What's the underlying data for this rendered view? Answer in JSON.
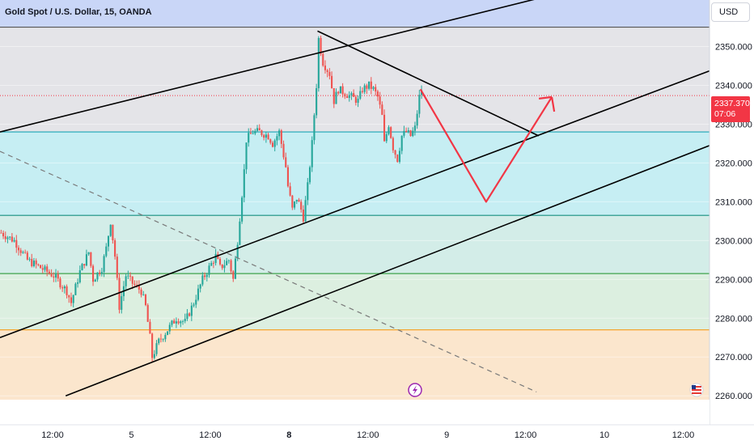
{
  "title": "Gold Spot / U.S. Dollar, 15, OANDA",
  "currency": "USD",
  "last_price": {
    "value": "2337.370",
    "countdown": "07:06"
  },
  "colors": {
    "up": "#26a69a",
    "down": "#ef5350",
    "zone_top": "#c9d6f7",
    "zone_gray": "#e4e4e8",
    "zone_cyan": "#c6eef3",
    "zone_teal": "#d3ede8",
    "zone_green": "#dcefe0",
    "zone_orange": "#fbe6cd",
    "projection": "#f23645"
  },
  "chart_data": {
    "type": "candlestick",
    "ylim": [
      2259,
      2362
    ],
    "y_ticks": [
      2260,
      2270,
      2280,
      2290,
      2300,
      2310,
      2320,
      2330,
      2340,
      2350
    ],
    "y_tick_labels": [
      "2260.000",
      "2270.000",
      "2280.000",
      "2290.000",
      "2300.000",
      "2310.000",
      "2320.000",
      "2330.000",
      "2340.000",
      "2350.000"
    ],
    "x_ticks": [
      {
        "label": "12:00",
        "bar": 24,
        "bold": false
      },
      {
        "label": "5",
        "bar": 60,
        "bold": false
      },
      {
        "label": "12:00",
        "bar": 96,
        "bold": false
      },
      {
        "label": "8",
        "bar": 132,
        "bold": true
      },
      {
        "label": "12:00",
        "bar": 168,
        "bold": false
      },
      {
        "label": "9",
        "bar": 204,
        "bold": false
      },
      {
        "label": "12:00",
        "bar": 240,
        "bold": false
      },
      {
        "label": "10",
        "bar": 276,
        "bold": false
      },
      {
        "label": "12:00",
        "bar": 312,
        "bold": false
      }
    ],
    "bars_total": 324,
    "close_path": [
      [
        0,
        2302
      ],
      [
        6,
        2300
      ],
      [
        12,
        2295
      ],
      [
        18,
        2293
      ],
      [
        24,
        2291
      ],
      [
        30,
        2287
      ],
      [
        32,
        2284
      ],
      [
        36,
        2292
      ],
      [
        40,
        2297
      ],
      [
        42,
        2290
      ],
      [
        46,
        2293
      ],
      [
        48,
        2298
      ],
      [
        50,
        2305
      ],
      [
        52,
        2296
      ],
      [
        54,
        2283
      ],
      [
        57,
        2291
      ],
      [
        60,
        2289
      ],
      [
        64,
        2287
      ],
      [
        66,
        2283
      ],
      [
        68,
        2275
      ],
      [
        69,
        2270
      ],
      [
        72,
        2274
      ],
      [
        76,
        2277
      ],
      [
        80,
        2280
      ],
      [
        84,
        2279
      ],
      [
        88,
        2284
      ],
      [
        92,
        2290
      ],
      [
        96,
        2294
      ],
      [
        98,
        2296
      ],
      [
        100,
        2293
      ],
      [
        104,
        2295
      ],
      [
        106,
        2290
      ],
      [
        108,
        2300
      ],
      [
        110,
        2312
      ],
      [
        111,
        2318
      ],
      [
        112,
        2326
      ],
      [
        115,
        2328
      ],
      [
        118,
        2328
      ],
      [
        122,
        2327
      ],
      [
        124,
        2325
      ],
      [
        127,
        2328
      ],
      [
        128,
        2325
      ],
      [
        130,
        2319
      ],
      [
        131,
        2314
      ],
      [
        133,
        2308
      ],
      [
        135,
        2311
      ],
      [
        137,
        2308
      ],
      [
        138,
        2306
      ],
      [
        140,
        2314
      ],
      [
        142,
        2325
      ],
      [
        144,
        2340
      ],
      [
        145,
        2352
      ],
      [
        147,
        2346
      ],
      [
        150,
        2343
      ],
      [
        152,
        2336
      ],
      [
        154,
        2339
      ],
      [
        157,
        2338
      ],
      [
        160,
        2337
      ],
      [
        163,
        2336
      ],
      [
        165,
        2339
      ],
      [
        168,
        2340
      ],
      [
        170,
        2339
      ],
      [
        172,
        2337
      ],
      [
        174,
        2332
      ],
      [
        175,
        2325
      ],
      [
        177,
        2330
      ],
      [
        179,
        2324
      ],
      [
        181,
        2321
      ],
      [
        183,
        2327
      ],
      [
        185,
        2328
      ],
      [
        187,
        2327
      ],
      [
        189,
        2329
      ],
      [
        191,
        2337
      ],
      [
        192,
        2339
      ]
    ],
    "last_close": 2337.37,
    "zones": [
      {
        "from": 2355,
        "to": 2362,
        "color": "zone_top"
      },
      {
        "from": 2328,
        "to": 2355,
        "color": "zone_gray"
      },
      {
        "from": 2306.5,
        "to": 2328,
        "color": "zone_cyan"
      },
      {
        "from": 2291.5,
        "to": 2306.5,
        "color": "zone_teal"
      },
      {
        "from": 2277,
        "to": 2291.5,
        "color": "zone_green"
      },
      {
        "from": 2259,
        "to": 2277,
        "color": "zone_orange"
      }
    ],
    "levels": [
      {
        "price": 2355,
        "color": "#555555"
      },
      {
        "price": 2328,
        "color": "#1aa4b4"
      },
      {
        "price": 2306.5,
        "color": "#148f80"
      },
      {
        "price": 2291.5,
        "color": "#3fa34d"
      },
      {
        "price": 2277,
        "color": "#f59d1a"
      }
    ],
    "trendlines": [
      {
        "kind": "channel-top",
        "from": [
          0,
          2328
        ],
        "to": [
          250,
          2363
        ],
        "color": "#000000",
        "dash": false
      },
      {
        "kind": "channel-mid",
        "from": [
          0,
          2275
        ],
        "to": [
          330,
          2345
        ],
        "color": "#000000",
        "dash": false
      },
      {
        "kind": "channel-low",
        "from": [
          30,
          2260
        ],
        "to": [
          340,
          2328
        ],
        "color": "#000000",
        "dash": false
      },
      {
        "kind": "down-trend",
        "from": [
          145,
          2354
        ],
        "to": [
          246,
          2327
        ],
        "color": "#000000",
        "dash": false
      },
      {
        "kind": "dashed-trend",
        "from": [
          0,
          2323
        ],
        "to": [
          245,
          2261
        ],
        "color": "#7a7a7a",
        "dash": true
      }
    ],
    "projection_path": [
      [
        192,
        2339
      ],
      [
        222,
        2310
      ],
      [
        252,
        2337
      ]
    ]
  }
}
